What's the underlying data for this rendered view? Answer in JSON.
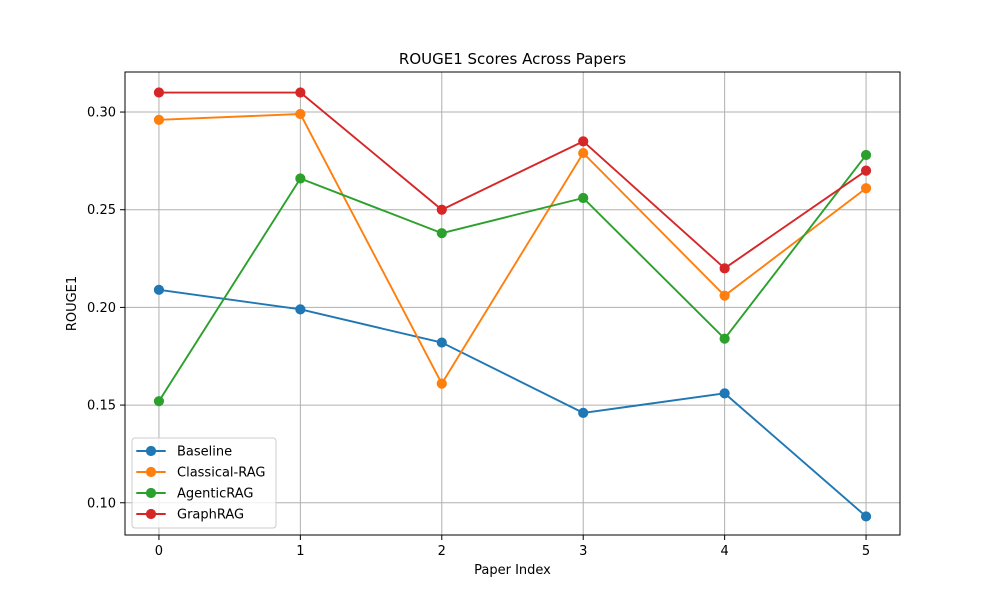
{
  "chart_data": {
    "type": "line",
    "title": "ROUGE1 Scores Across Papers",
    "xlabel": "Paper Index",
    "ylabel": "ROUGE1",
    "x": [
      0,
      1,
      2,
      3,
      4,
      5
    ],
    "xlim": [
      -0.24,
      5.24
    ],
    "ylim": [
      0.0835,
      0.3205
    ],
    "xticks": [
      0,
      1,
      2,
      3,
      4,
      5
    ],
    "xtick_labels": [
      "0",
      "1",
      "2",
      "3",
      "4",
      "5"
    ],
    "yticks": [
      0.1,
      0.15,
      0.2,
      0.25,
      0.3
    ],
    "ytick_labels": [
      "0.10",
      "0.15",
      "0.20",
      "0.25",
      "0.30"
    ],
    "grid": true,
    "legend_position": "lower-left",
    "series": [
      {
        "name": "Baseline",
        "color": "#1f77b4",
        "values": [
          0.209,
          0.199,
          0.182,
          0.146,
          0.156,
          0.093
        ]
      },
      {
        "name": "Classical-RAG",
        "color": "#ff7f0e",
        "values": [
          0.296,
          0.299,
          0.161,
          0.279,
          0.206,
          0.261
        ]
      },
      {
        "name": "AgenticRAG",
        "color": "#2ca02c",
        "values": [
          0.152,
          0.266,
          0.238,
          0.256,
          0.184,
          0.278
        ]
      },
      {
        "name": "GraphRAG",
        "color": "#d62728",
        "values": [
          0.31,
          0.31,
          0.25,
          0.285,
          0.22,
          0.27
        ]
      }
    ]
  }
}
